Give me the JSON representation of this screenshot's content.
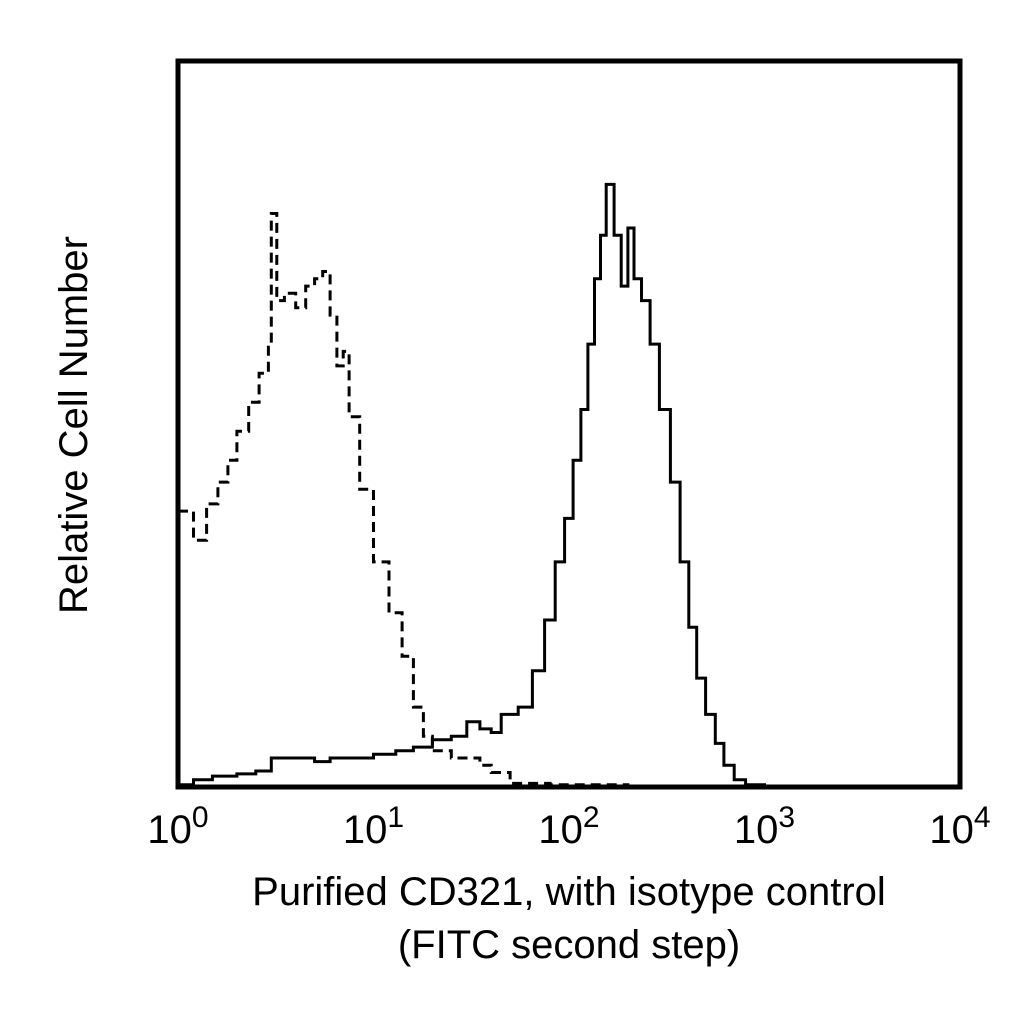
{
  "chart_data": {
    "type": "line",
    "title": "",
    "ylabel": "Relative Cell Number",
    "xlabel_line1": "Purified CD321, with isotype control",
    "xlabel_line2": "(FITC second step)",
    "x_scale": "log",
    "xlim": [
      1,
      10000
    ],
    "ylim": [
      0,
      100
    ],
    "grid": false,
    "legend": "none",
    "x_ticks": [
      {
        "base": "10",
        "exp": "0",
        "value": 1
      },
      {
        "base": "10",
        "exp": "1",
        "value": 10
      },
      {
        "base": "10",
        "exp": "2",
        "value": 100
      },
      {
        "base": "10",
        "exp": "3",
        "value": 1000
      },
      {
        "base": "10",
        "exp": "4",
        "value": 10000
      }
    ],
    "series": [
      {
        "style": "dashed",
        "color": "#000000",
        "points": [
          [
            1.0,
            38
          ],
          [
            1.2,
            34
          ],
          [
            1.4,
            39
          ],
          [
            1.6,
            42
          ],
          [
            1.8,
            45
          ],
          [
            2.0,
            49
          ],
          [
            2.3,
            53
          ],
          [
            2.6,
            57
          ],
          [
            2.9,
            61
          ],
          [
            3.0,
            79
          ],
          [
            3.2,
            67
          ],
          [
            3.5,
            68
          ],
          [
            4.0,
            66
          ],
          [
            4.5,
            69
          ],
          [
            5.0,
            70
          ],
          [
            5.5,
            71
          ],
          [
            6.0,
            65
          ],
          [
            6.5,
            58
          ],
          [
            7.0,
            60
          ],
          [
            7.5,
            51
          ],
          [
            8.5,
            41
          ],
          [
            10.0,
            31
          ],
          [
            12.0,
            24
          ],
          [
            14.0,
            18
          ],
          [
            16.0,
            11
          ],
          [
            18.0,
            7
          ],
          [
            20.0,
            5
          ],
          [
            25.0,
            4
          ],
          [
            30.0,
            4
          ],
          [
            35.0,
            3
          ],
          [
            40.0,
            2
          ],
          [
            50.0,
            0.5
          ],
          [
            80.0,
            0.3
          ],
          [
            120.0,
            0.3
          ],
          [
            200.0,
            0.2
          ]
        ]
      },
      {
        "style": "solid",
        "color": "#000000",
        "points": [
          [
            1.0,
            0.3
          ],
          [
            1.2,
            1
          ],
          [
            1.5,
            1.5
          ],
          [
            2.0,
            1.8
          ],
          [
            2.5,
            2.2
          ],
          [
            3.0,
            4
          ],
          [
            4.0,
            4
          ],
          [
            5.0,
            3.5
          ],
          [
            6.0,
            4
          ],
          [
            8.0,
            4
          ],
          [
            10.0,
            4.5
          ],
          [
            13.0,
            5
          ],
          [
            16.0,
            5.5
          ],
          [
            20.0,
            6.5
          ],
          [
            25.0,
            7
          ],
          [
            30.0,
            9
          ],
          [
            35.0,
            8
          ],
          [
            40.0,
            7.5
          ],
          [
            45.0,
            10
          ],
          [
            55.0,
            11
          ],
          [
            65.0,
            16
          ],
          [
            75.0,
            23
          ],
          [
            85.0,
            31
          ],
          [
            95.0,
            37
          ],
          [
            105.0,
            45
          ],
          [
            115.0,
            52
          ],
          [
            125.0,
            61
          ],
          [
            135.0,
            70
          ],
          [
            145.0,
            76
          ],
          [
            155.0,
            83
          ],
          [
            170.0,
            76
          ],
          [
            185.0,
            69
          ],
          [
            200.0,
            77
          ],
          [
            215.0,
            70
          ],
          [
            235.0,
            67
          ],
          [
            260.0,
            61
          ],
          [
            290.0,
            52
          ],
          [
            330.0,
            42
          ],
          [
            370.0,
            31
          ],
          [
            410.0,
            22
          ],
          [
            450.0,
            15
          ],
          [
            500.0,
            10
          ],
          [
            560.0,
            6
          ],
          [
            620.0,
            3
          ],
          [
            700.0,
            1
          ],
          [
            800.0,
            0.3
          ],
          [
            1000.0,
            0.2
          ]
        ]
      }
    ]
  }
}
